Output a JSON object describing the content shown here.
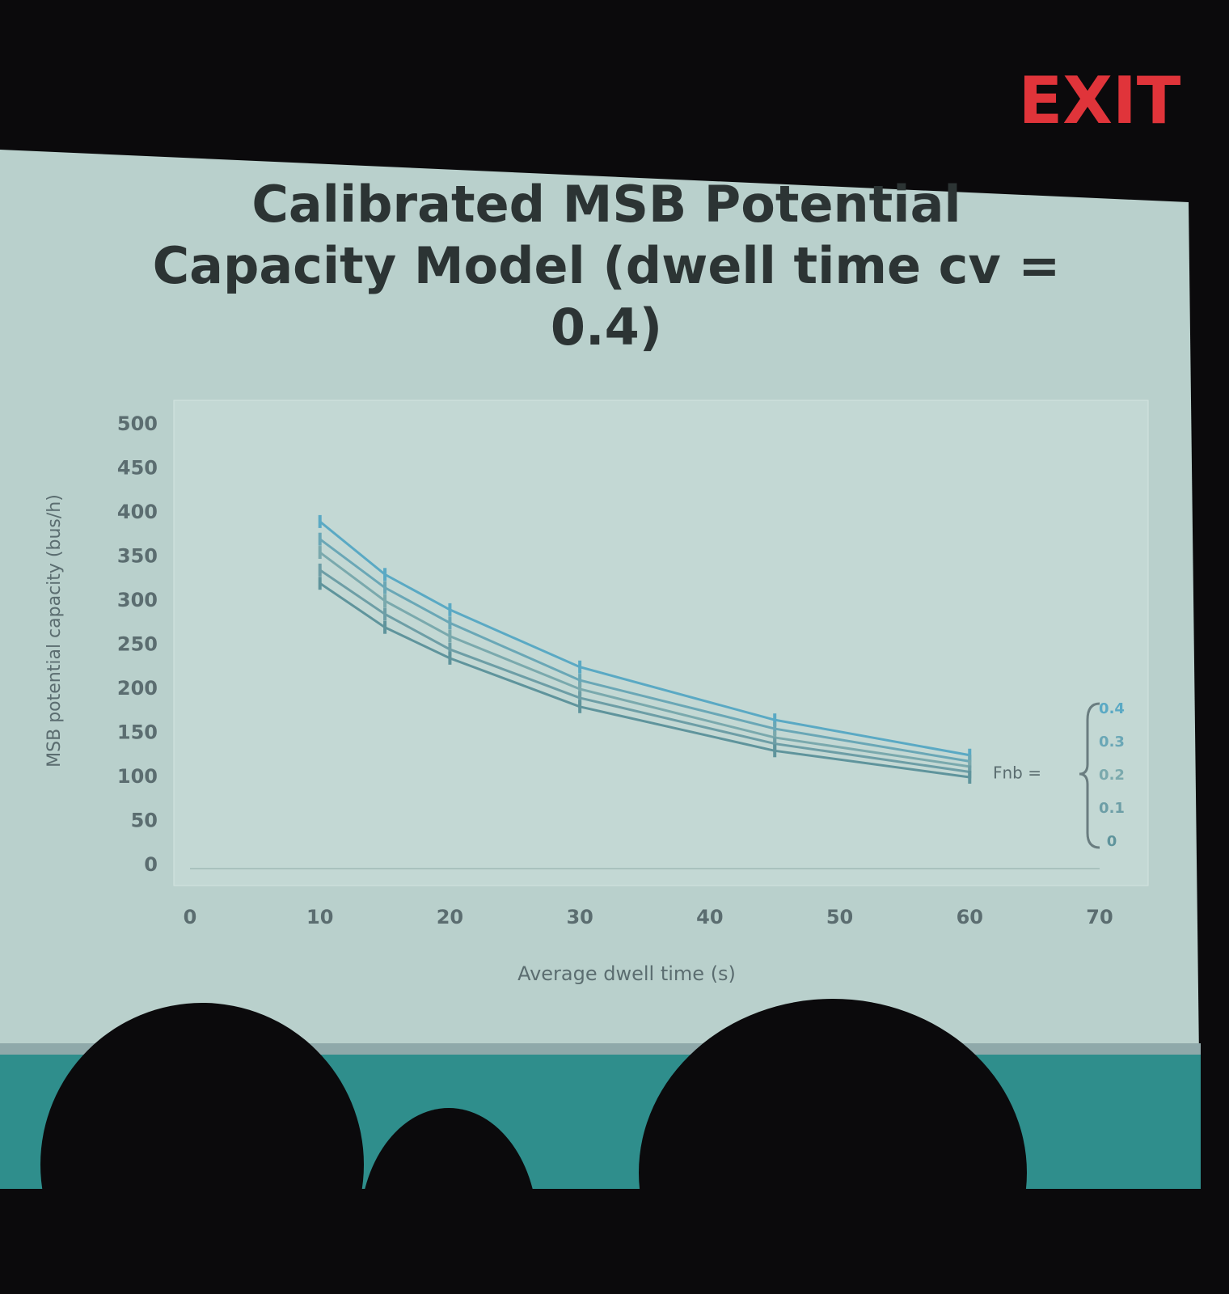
{
  "exit_sign": "EXIT",
  "chart_data": {
    "type": "line",
    "title": "Calibrated MSB Potential Capacity Model (dwell time cv = 0.4)",
    "x_label": "Average dwell time (s)",
    "y_label": "MSB potential capacity (bus/h)",
    "x": [
      10,
      15,
      20,
      30,
      45,
      60
    ],
    "series": [
      {
        "name": "0.4",
        "color": "#5aa9c4",
        "values": [
          390,
          330,
          290,
          225,
          165,
          125
        ]
      },
      {
        "name": "0.3",
        "color": "#6aa7b6",
        "values": [
          370,
          315,
          275,
          210,
          155,
          118
        ]
      },
      {
        "name": "0.2",
        "color": "#7aa9ad",
        "values": [
          355,
          300,
          260,
          200,
          145,
          112
        ]
      },
      {
        "name": "0.1",
        "color": "#6d9ea6",
        "values": [
          335,
          285,
          245,
          190,
          138,
          106
        ]
      },
      {
        "name": "0",
        "color": "#5f949c",
        "values": [
          320,
          270,
          235,
          180,
          130,
          100
        ]
      }
    ],
    "legend_title": "Fnb =",
    "xlim": [
      0,
      70
    ],
    "xticks": [
      0,
      10,
      20,
      30,
      40,
      50,
      60,
      70
    ],
    "ylim": [
      0,
      500
    ],
    "yticks": [
      0,
      50,
      100,
      150,
      200,
      250,
      300,
      350,
      400,
      450,
      500
    ],
    "grid": false,
    "legend": "right"
  }
}
